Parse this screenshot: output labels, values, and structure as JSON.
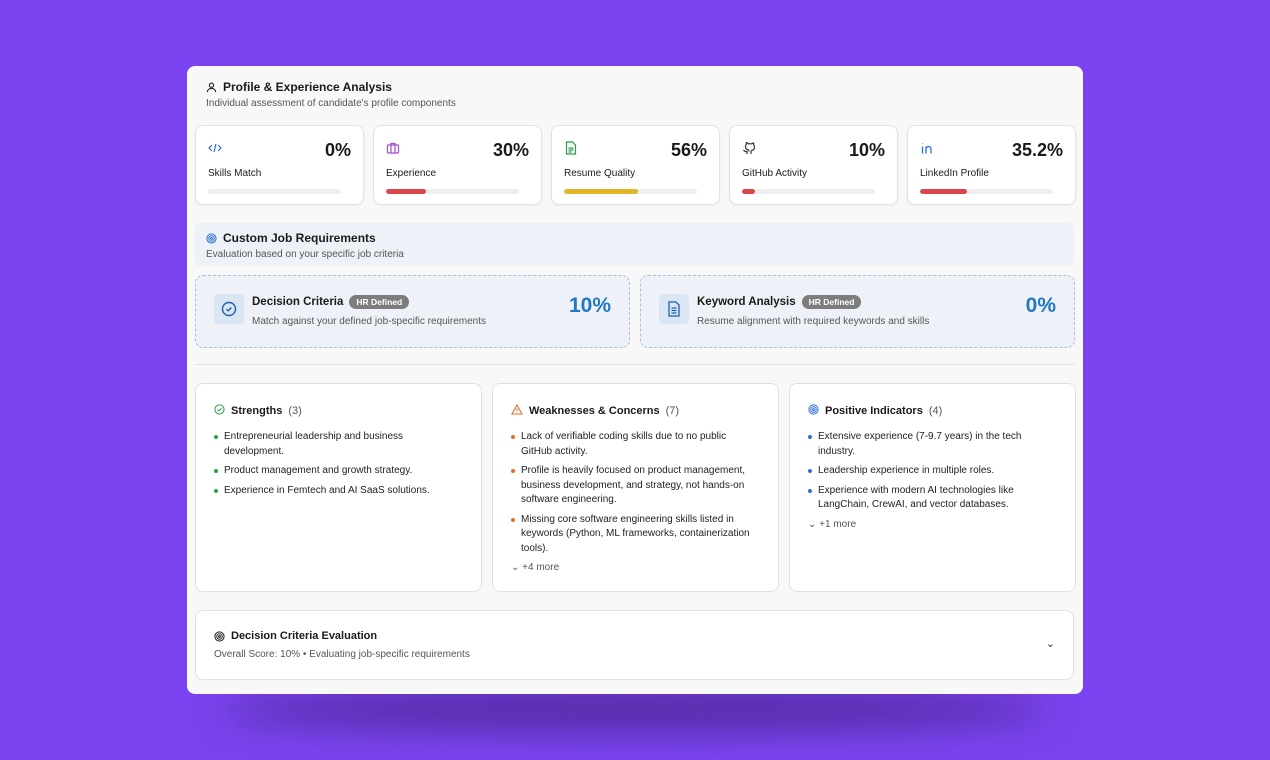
{
  "profile": {
    "title": "Profile & Experience Analysis",
    "subtitle": "Individual assessment of candidate's profile components",
    "metrics": [
      {
        "label": "Skills Match",
        "value": "0%",
        "progress": 0,
        "icon": "code-icon",
        "icon_color": "#2f6fd6",
        "bar_color": "#e0e0e0"
      },
      {
        "label": "Experience",
        "value": "30%",
        "progress": 30,
        "icon": "briefcase-icon",
        "icon_color": "#a24ccf",
        "bar_color": "#d9464b"
      },
      {
        "label": "Resume Quality",
        "value": "56%",
        "progress": 56,
        "icon": "file-text-icon",
        "icon_color": "#2a9d4f",
        "bar_color": "#e2b624"
      },
      {
        "label": "GitHub Activity",
        "value": "10%",
        "progress": 10,
        "icon": "github-icon",
        "icon_color": "#333333",
        "bar_color": "#d9464b"
      },
      {
        "label": "LinkedIn Profile",
        "value": "35.2%",
        "progress": 35.2,
        "icon": "linkedin-icon",
        "icon_color": "#2f6fd6",
        "bar_color": "#d9464b"
      }
    ]
  },
  "custom": {
    "title": "Custom Job Requirements",
    "subtitle": "Evaluation based on your specific job criteria",
    "cards": [
      {
        "title": "Decision Criteria",
        "badge": "HR Defined",
        "desc": "Match against your defined job-specific requirements",
        "value": "10%"
      },
      {
        "title": "Keyword Analysis",
        "badge": "HR Defined",
        "desc": "Resume alignment with required keywords and skills",
        "value": "0%"
      }
    ]
  },
  "columns": [
    {
      "title": "Strengths",
      "count": "(3)",
      "dot_color": "#2a9d4f",
      "items": [
        "Entrepreneurial leadership and business development.",
        "Product management and growth strategy.",
        "Experience in Femtech and AI SaaS solutions."
      ],
      "more": ""
    },
    {
      "title": "Weaknesses & Concerns",
      "count": "(7)",
      "dot_color": "#e0712c",
      "items": [
        "Lack of verifiable coding skills due to no public GitHub activity.",
        "Profile is heavily focused on product management, business development, and strategy, not hands-on software engineering.",
        "Missing core software engineering skills listed in keywords (Python, ML frameworks, containerization tools)."
      ],
      "more": "+4 more"
    },
    {
      "title": "Positive Indicators",
      "count": "(4)",
      "dot_color": "#2f6fd6",
      "items": [
        "Extensive experience (7-9.7 years) in the tech industry.",
        "Leadership experience in multiple roles.",
        "Experience with modern AI technologies like LangChain, CrewAI, and vector databases."
      ],
      "more": "+1 more"
    }
  ],
  "evaluation": {
    "title": "Decision Criteria Evaluation",
    "subtitle": "Overall Score: 10% • Evaluating job-specific requirements"
  }
}
